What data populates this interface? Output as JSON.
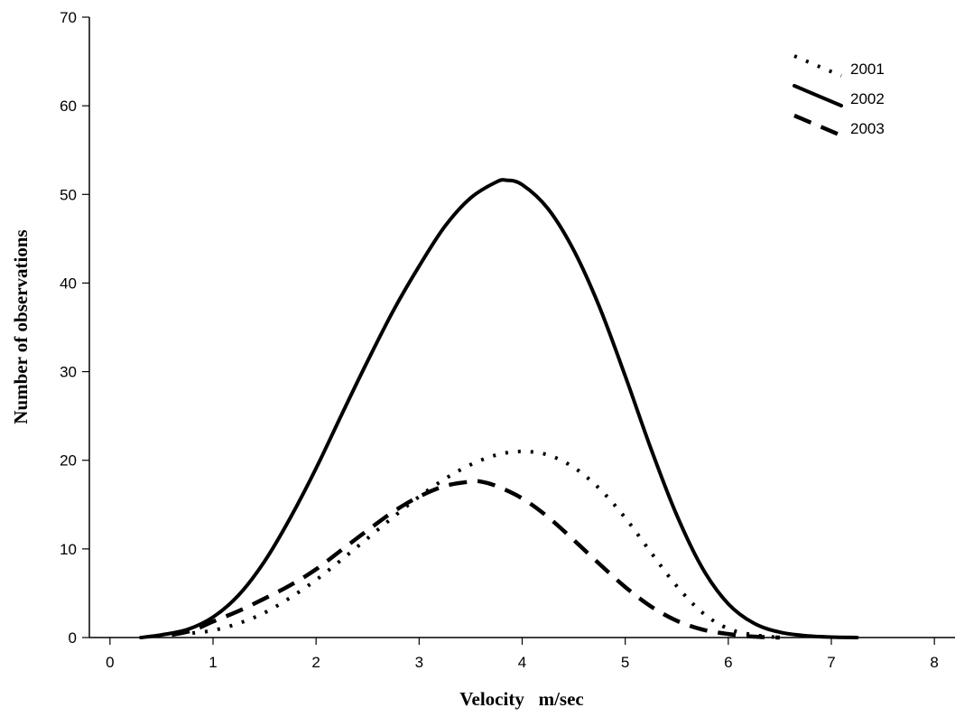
{
  "chart_data": {
    "type": "line",
    "title": "",
    "xlabel": "Velocity   m/sec",
    "ylabel": "Number of observations",
    "xlim": [
      -0.2,
      8.2
    ],
    "ylim": [
      0,
      70
    ],
    "xticks": [
      0,
      1,
      2,
      3,
      4,
      5,
      6,
      7,
      8
    ],
    "yticks": [
      0,
      10,
      20,
      30,
      40,
      50,
      60,
      70
    ],
    "grid": false,
    "legend_position": "top-right",
    "series": [
      {
        "name": "2001",
        "style": "dotted",
        "color": "#000000",
        "x": [
          0.8,
          1.0,
          1.25,
          1.5,
          1.75,
          2.0,
          2.25,
          2.5,
          2.75,
          3.0,
          3.25,
          3.5,
          3.75,
          4.0,
          4.25,
          4.5,
          4.75,
          5.0,
          5.25,
          5.5,
          5.75,
          6.0,
          6.25,
          6.5
        ],
        "y": [
          0.5,
          0.8,
          1.6,
          2.8,
          4.5,
          6.5,
          8.8,
          11.2,
          13.6,
          15.9,
          17.9,
          19.5,
          20.6,
          21.0,
          20.6,
          19.2,
          16.8,
          13.5,
          9.6,
          5.8,
          2.8,
          1.0,
          0.3,
          0.0
        ]
      },
      {
        "name": "2002",
        "style": "solid",
        "color": "#000000",
        "x": [
          0.3,
          0.5,
          0.75,
          1.0,
          1.25,
          1.5,
          1.75,
          2.0,
          2.25,
          2.5,
          2.75,
          3.0,
          3.25,
          3.5,
          3.75,
          3.85,
          4.0,
          4.25,
          4.5,
          4.75,
          5.0,
          5.25,
          5.5,
          5.75,
          6.0,
          6.25,
          6.5,
          6.75,
          7.0,
          7.25
        ],
        "y": [
          0.0,
          0.3,
          0.9,
          2.3,
          4.8,
          8.6,
          13.5,
          19.1,
          25.2,
          31.2,
          36.9,
          41.9,
          46.4,
          49.6,
          51.4,
          51.6,
          51.1,
          48.4,
          43.7,
          37.3,
          29.5,
          21.3,
          13.8,
          7.8,
          3.8,
          1.6,
          0.6,
          0.2,
          0.05,
          0.0
        ]
      },
      {
        "name": "2003",
        "style": "dashed",
        "color": "#000000",
        "x": [
          0.6,
          0.8,
          1.0,
          1.25,
          1.5,
          1.75,
          2.0,
          2.25,
          2.5,
          2.75,
          3.0,
          3.25,
          3.5,
          3.6,
          3.75,
          4.0,
          4.25,
          4.5,
          4.75,
          5.0,
          5.25,
          5.5,
          5.75,
          6.0,
          6.25,
          6.5
        ],
        "y": [
          0.3,
          0.8,
          1.8,
          3.0,
          4.4,
          5.9,
          7.7,
          9.9,
          12.1,
          14.2,
          15.9,
          17.1,
          17.6,
          17.6,
          17.1,
          15.7,
          13.6,
          11.0,
          8.3,
          5.7,
          3.5,
          1.9,
          0.9,
          0.4,
          0.1,
          0.0
        ]
      }
    ]
  }
}
